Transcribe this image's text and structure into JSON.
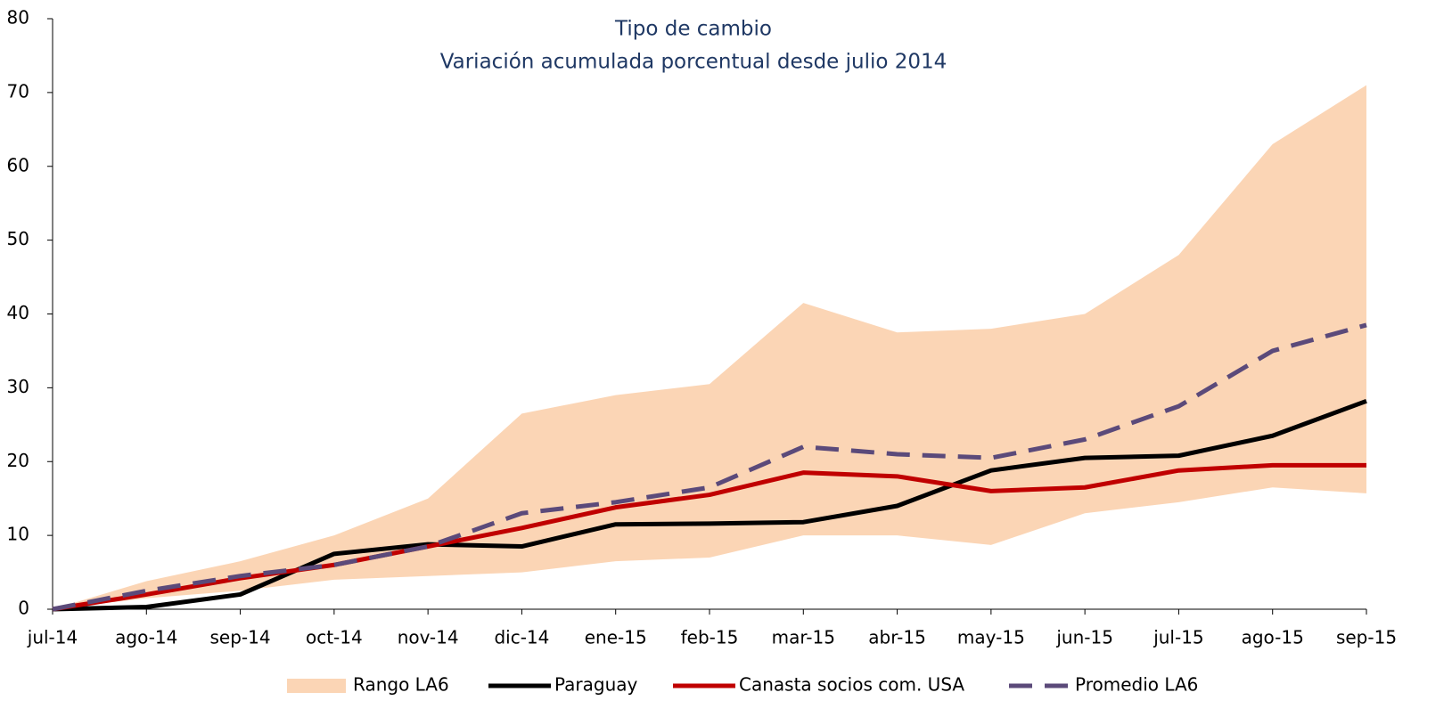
{
  "chart_data": {
    "type": "line",
    "title": "Tipo de cambio",
    "subtitle": "Variación acumulada porcentual desde julio 2014",
    "categories": [
      "jul-14",
      "ago-14",
      "sep-14",
      "oct-14",
      "nov-14",
      "dic-14",
      "ene-15",
      "feb-15",
      "mar-15",
      "abr-15",
      "may-15",
      "jun-15",
      "jul-15",
      "ago-15",
      "sep-15"
    ],
    "ylim": [
      0,
      80
    ],
    "yticks": [
      0,
      10,
      20,
      30,
      40,
      50,
      60,
      70,
      80
    ],
    "range": {
      "name": "Rango LA6",
      "color": "#fbd5b5",
      "lower": [
        0,
        1.5,
        2.5,
        4,
        4.5,
        5,
        6.5,
        7,
        10,
        10,
        8.7,
        13,
        14.5,
        16.5,
        15.7
      ],
      "upper": [
        0,
        3.8,
        6.5,
        10,
        15,
        26.5,
        29,
        30.5,
        41.5,
        37.5,
        38,
        40,
        48,
        63,
        71
      ]
    },
    "series": [
      {
        "name": "Paraguay",
        "color": "#000000",
        "dash": false,
        "values": [
          0,
          0.3,
          2,
          7.5,
          8.8,
          8.5,
          11.5,
          11.6,
          11.8,
          14,
          18.8,
          20.5,
          20.8,
          23.5,
          28.2
        ]
      },
      {
        "name": "Canasta socios com. USA",
        "color": "#c00000",
        "dash": false,
        "values": [
          0,
          2,
          4.2,
          6,
          8.5,
          11,
          13.8,
          15.5,
          18.5,
          18,
          16,
          16.5,
          18.8,
          19.5,
          19.5
        ]
      },
      {
        "name": "Promedio LA6",
        "color": "#5b4a7a",
        "dash": true,
        "values": [
          0,
          2.5,
          4.5,
          6,
          8.5,
          13,
          14.5,
          16.5,
          22,
          21,
          20.5,
          23,
          27.5,
          35,
          38.5
        ]
      }
    ]
  }
}
